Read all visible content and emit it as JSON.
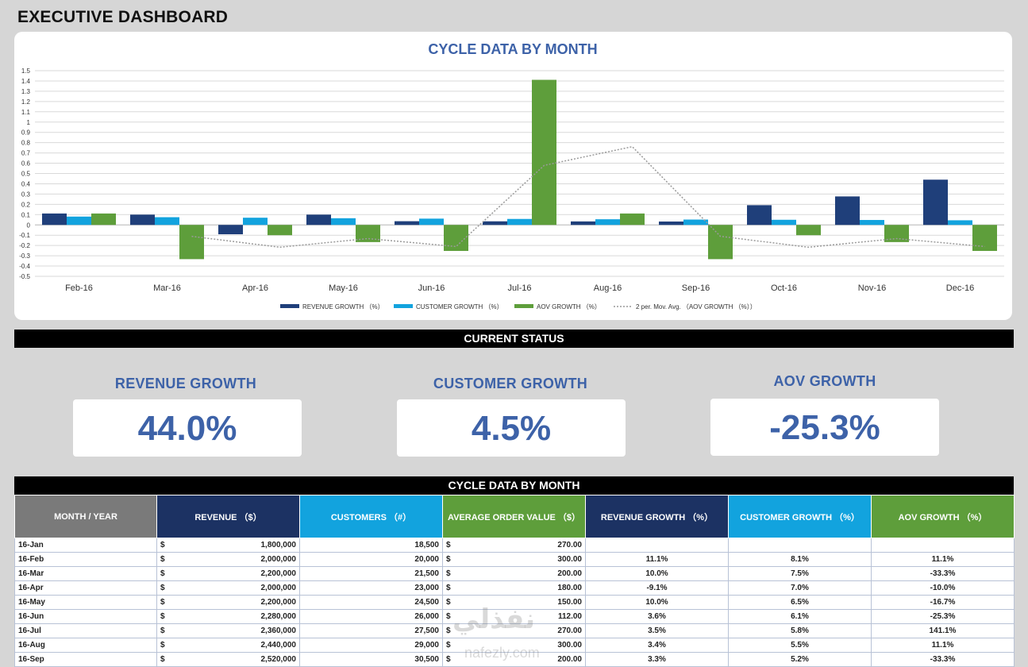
{
  "page_title": "EXECUTIVE DASHBOARD",
  "chart_data": {
    "type": "bar",
    "title": "CYCLE DATA BY MONTH",
    "categories": [
      "Feb-16",
      "Mar-16",
      "Apr-16",
      "May-16",
      "Jun-16",
      "Jul-16",
      "Aug-16",
      "Sep-16",
      "Oct-16",
      "Nov-16",
      "Dec-16"
    ],
    "series": [
      {
        "name": "REVENUE GROWTH （%）",
        "color": "#1f3f7a",
        "values": [
          0.111,
          0.1,
          -0.091,
          0.1,
          0.036,
          0.035,
          0.034,
          0.033,
          0.192,
          0.277,
          0.44
        ]
      },
      {
        "name": "CUSTOMER GROWTH （%）",
        "color": "#12a3de",
        "values": [
          0.081,
          0.075,
          0.07,
          0.065,
          0.061,
          0.058,
          0.055,
          0.052,
          0.05,
          0.048,
          0.045
        ]
      },
      {
        "name": "AOV GROWTH （%）",
        "color": "#5e9e3b",
        "values": [
          0.111,
          -0.333,
          -0.1,
          -0.167,
          -0.253,
          1.411,
          0.111,
          -0.333,
          -0.1,
          -0.167,
          -0.253
        ]
      }
    ],
    "trendline": {
      "name": "2 per. Mov. Avg. （AOV GROWTH （%））",
      "color": "#9a9a9a",
      "values": [
        null,
        -0.111,
        -0.217,
        -0.133,
        -0.21,
        0.579,
        0.761,
        -0.111,
        -0.217,
        -0.133,
        -0.21
      ]
    },
    "ylim": [
      -0.5,
      1.5
    ],
    "yticks": [
      "-0.5",
      "-0.4",
      "-0.3",
      "-0.2",
      "-0.1",
      "0",
      "0.1",
      "0.2",
      "0.3",
      "0.4",
      "0.5",
      "0.6",
      "0.7",
      "0.8",
      "0.9",
      "1",
      "1.1",
      "1.2",
      "1.3",
      "1.4",
      "1.5"
    ],
    "grid": true,
    "legend_position": "bottom"
  },
  "current_status": {
    "header": "CURRENT STATUS",
    "kpis": [
      {
        "label": "REVENUE GROWTH",
        "value": "44.0%"
      },
      {
        "label": "CUSTOMER GROWTH",
        "value": "4.5%"
      },
      {
        "label": "AOV GROWTH",
        "value": "-25.3%"
      }
    ]
  },
  "table": {
    "header": "CYCLE DATA BY MONTH",
    "columns": [
      {
        "label": "MONTH / YEAR",
        "color": "#7a7a7a"
      },
      {
        "label": "REVENUE （$）",
        "color": "#1c3263"
      },
      {
        "label": "CUSTOMERS （#）",
        "color": "#12a3de"
      },
      {
        "label": "AVERAGE ORDER VALUE （$）",
        "color": "#5e9e3b"
      },
      {
        "label": "REVENUE GROWTH （%）",
        "color": "#1c3263"
      },
      {
        "label": "CUSTOMER GROWTH （%）",
        "color": "#12a3de"
      },
      {
        "label": "AOV GROWTH （%）",
        "color": "#5e9e3b"
      }
    ],
    "currency_symbol": "$",
    "rows": [
      {
        "month": "16-Jan",
        "revenue": "1,800,000",
        "customers": "18,500",
        "aov": "270.00",
        "rev_growth": "",
        "cust_growth": "",
        "aov_growth": ""
      },
      {
        "month": "16-Feb",
        "revenue": "2,000,000",
        "customers": "20,000",
        "aov": "300.00",
        "rev_growth": "11.1%",
        "cust_growth": "8.1%",
        "aov_growth": "11.1%"
      },
      {
        "month": "16-Mar",
        "revenue": "2,200,000",
        "customers": "21,500",
        "aov": "200.00",
        "rev_growth": "10.0%",
        "cust_growth": "7.5%",
        "aov_growth": "-33.3%"
      },
      {
        "month": "16-Apr",
        "revenue": "2,000,000",
        "customers": "23,000",
        "aov": "180.00",
        "rev_growth": "-9.1%",
        "cust_growth": "7.0%",
        "aov_growth": "-10.0%"
      },
      {
        "month": "16-May",
        "revenue": "2,200,000",
        "customers": "24,500",
        "aov": "150.00",
        "rev_growth": "10.0%",
        "cust_growth": "6.5%",
        "aov_growth": "-16.7%"
      },
      {
        "month": "16-Jun",
        "revenue": "2,280,000",
        "customers": "26,000",
        "aov": "112.00",
        "rev_growth": "3.6%",
        "cust_growth": "6.1%",
        "aov_growth": "-25.3%"
      },
      {
        "month": "16-Jul",
        "revenue": "2,360,000",
        "customers": "27,500",
        "aov": "270.00",
        "rev_growth": "3.5%",
        "cust_growth": "5.8%",
        "aov_growth": "141.1%"
      },
      {
        "month": "16-Aug",
        "revenue": "2,440,000",
        "customers": "29,000",
        "aov": "300.00",
        "rev_growth": "3.4%",
        "cust_growth": "5.5%",
        "aov_growth": "11.1%"
      },
      {
        "month": "16-Sep",
        "revenue": "2,520,000",
        "customers": "30,500",
        "aov": "200.00",
        "rev_growth": "3.3%",
        "cust_growth": "5.2%",
        "aov_growth": "-33.3%"
      }
    ]
  },
  "watermark": {
    "text": "نفذلي",
    "subtext": "nafezly.com"
  }
}
